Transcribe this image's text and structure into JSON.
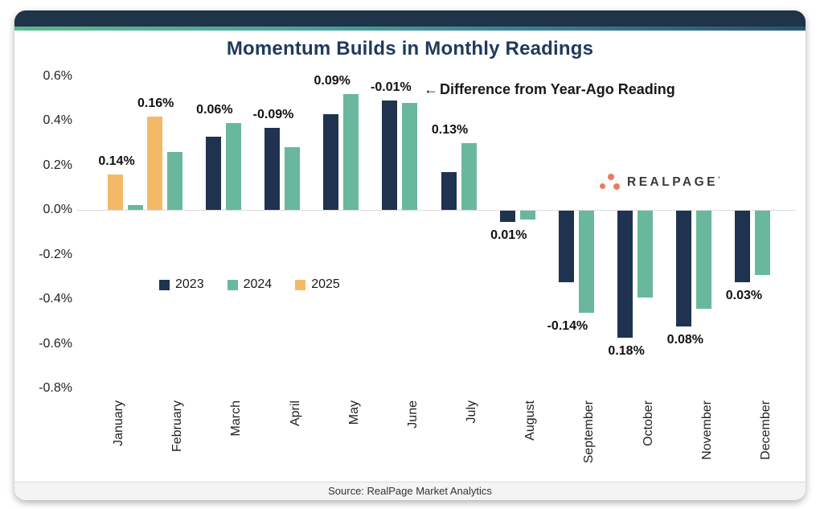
{
  "annotation": {
    "arrow": "←",
    "text": "Difference from Year-Ago Reading"
  },
  "logo": {
    "text": "REALPAGE",
    "mark": "’"
  },
  "legend": [
    {
      "label": "2023",
      "color": "#1F3350"
    },
    {
      "label": "2024",
      "color": "#69B89D"
    },
    {
      "label": "2025",
      "color": "#F4B967"
    }
  ],
  "footer": {
    "source": "Source: RealPage Market Analytics"
  },
  "colors": {
    "header_navy": "#1F3349",
    "title_navy": "#1F3A5C",
    "bar_2023": "#1F3350",
    "bar_2024": "#69B89D",
    "bar_2025": "#F4B967",
    "logo_coral": "#F0795A",
    "zero_line": "#DBDBDB",
    "footer_bg": "#F4F4F4",
    "accent_gradient": [
      "#58BA8D",
      "#4BA89A",
      "#3A7E95",
      "#27546F"
    ]
  },
  "chart_data": {
    "type": "bar",
    "title": "Momentum Builds in Monthly Readings",
    "xlabel": "",
    "ylabel": "",
    "unit": "%",
    "ylim": [
      -0.8,
      0.6
    ],
    "grid": false,
    "legend_position": "middle-left",
    "y_ticks": [
      "0.6%",
      "0.4%",
      "0.2%",
      "0.0%",
      "-0.2%",
      "-0.4%",
      "-0.6%",
      "-0.8%"
    ],
    "categories": [
      "January",
      "February",
      "March",
      "April",
      "May",
      "June",
      "July",
      "August",
      "September",
      "October",
      "November",
      "December"
    ],
    "series_colors": {
      "2023": "#1F3350",
      "2024": "#69B89D",
      "2025": "#F4B967"
    },
    "months": [
      {
        "month": "January",
        "bars": [
          {
            "year": "2025",
            "value": 0.16
          },
          {
            "year": "2024",
            "value": 0.02
          }
        ],
        "label": "0.14%"
      },
      {
        "month": "February",
        "bars": [
          {
            "year": "2025",
            "value": 0.42
          },
          {
            "year": "2024",
            "value": 0.26
          }
        ],
        "label": "0.16%"
      },
      {
        "month": "March",
        "bars": [
          {
            "year": "2023",
            "value": 0.33
          },
          {
            "year": "2024",
            "value": 0.39
          }
        ],
        "label": "0.06%"
      },
      {
        "month": "April",
        "bars": [
          {
            "year": "2023",
            "value": 0.37
          },
          {
            "year": "2024",
            "value": 0.28
          }
        ],
        "label": "-0.09%"
      },
      {
        "month": "May",
        "bars": [
          {
            "year": "2023",
            "value": 0.43
          },
          {
            "year": "2024",
            "value": 0.52
          }
        ],
        "label": "0.09%"
      },
      {
        "month": "June",
        "bars": [
          {
            "year": "2023",
            "value": 0.49
          },
          {
            "year": "2024",
            "value": 0.48
          }
        ],
        "label": "-0.01%"
      },
      {
        "month": "July",
        "bars": [
          {
            "year": "2023",
            "value": 0.17
          },
          {
            "year": "2024",
            "value": 0.3
          }
        ],
        "label": "0.13%"
      },
      {
        "month": "August",
        "bars": [
          {
            "year": "2023",
            "value": -0.05
          },
          {
            "year": "2024",
            "value": -0.04
          }
        ],
        "label": "0.01%"
      },
      {
        "month": "September",
        "bars": [
          {
            "year": "2023",
            "value": -0.32
          },
          {
            "year": "2024",
            "value": -0.46
          }
        ],
        "label": "-0.14%"
      },
      {
        "month": "October",
        "bars": [
          {
            "year": "2023",
            "value": -0.57
          },
          {
            "year": "2024",
            "value": -0.39
          }
        ],
        "label": "0.18%"
      },
      {
        "month": "November",
        "bars": [
          {
            "year": "2023",
            "value": -0.52
          },
          {
            "year": "2024",
            "value": -0.44
          }
        ],
        "label": "0.08%"
      },
      {
        "month": "December",
        "bars": [
          {
            "year": "2023",
            "value": -0.32
          },
          {
            "year": "2024",
            "value": -0.29
          }
        ],
        "label": "0.03%"
      }
    ]
  }
}
